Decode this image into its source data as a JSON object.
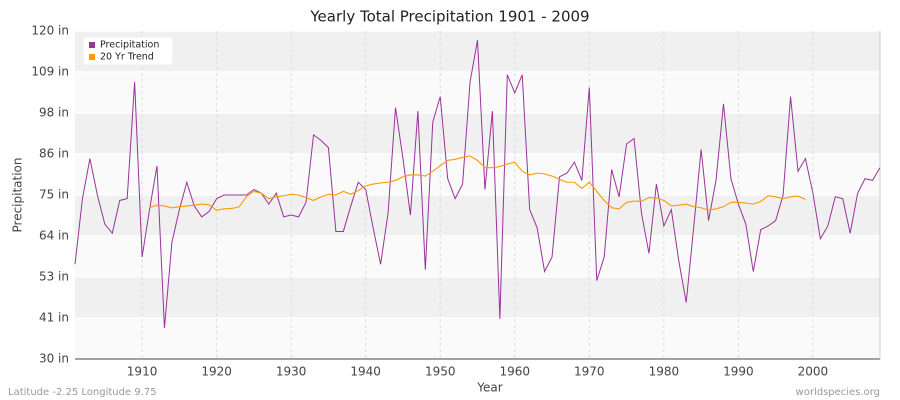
{
  "chart_data": {
    "type": "line",
    "title": "Yearly Total Precipitation 1901 - 2009",
    "x_label": "Year",
    "y_label": "Precipitation",
    "footer_left": "Latitude -2.25 Longitude 9.75",
    "footer_right": "worldspecies.org",
    "x": [
      1901,
      1902,
      1903,
      1904,
      1905,
      1906,
      1907,
      1908,
      1909,
      1910,
      1911,
      1912,
      1913,
      1914,
      1915,
      1916,
      1917,
      1918,
      1919,
      1920,
      1921,
      1922,
      1923,
      1924,
      1925,
      1926,
      1927,
      1928,
      1929,
      1930,
      1931,
      1932,
      1933,
      1934,
      1935,
      1936,
      1937,
      1938,
      1939,
      1940,
      1941,
      1942,
      1943,
      1944,
      1945,
      1946,
      1947,
      1948,
      1949,
      1950,
      1951,
      1952,
      1953,
      1954,
      1955,
      1956,
      1957,
      1958,
      1959,
      1960,
      1961,
      1962,
      1963,
      1964,
      1965,
      1966,
      1967,
      1968,
      1969,
      1970,
      1971,
      1972,
      1973,
      1974,
      1975,
      1976,
      1977,
      1978,
      1979,
      1980,
      1981,
      1982,
      1983,
      1984,
      1985,
      1986,
      1987,
      1988,
      1989,
      1990,
      1991,
      1992,
      1993,
      1994,
      1995,
      1996,
      1997,
      1998,
      1999,
      2000,
      2001,
      2002,
      2003,
      2004,
      2005,
      2006,
      2007,
      2008,
      2009
    ],
    "series": [
      {
        "name": "Precipitation",
        "color": "#993399",
        "values": [
          56,
          74,
          85,
          75,
          67,
          64.5,
          73.5,
          74,
          106,
          58,
          71,
          83,
          38.5,
          62,
          71,
          78.5,
          72,
          69,
          70.5,
          74,
          75,
          75,
          75,
          75,
          76.5,
          75.5,
          72.5,
          75.5,
          69,
          69.5,
          69,
          73,
          91.5,
          90,
          88,
          65,
          65,
          72,
          78.5,
          76.5,
          66,
          56,
          70,
          99,
          85,
          69.5,
          98,
          54.5,
          95,
          102,
          79.5,
          74,
          78,
          106,
          117.5,
          76.5,
          98,
          41,
          108,
          103,
          108,
          71,
          66,
          54,
          58,
          80,
          81,
          84,
          79,
          104.5,
          51.5,
          58,
          82,
          74.5,
          89,
          90.5,
          70,
          59,
          78,
          66.5,
          71,
          57,
          45.5,
          66,
          87.5,
          68,
          79,
          100,
          79.5,
          72.5,
          67,
          54,
          65.5,
          66.5,
          68,
          75,
          102,
          81.5,
          85,
          75.5,
          63,
          66.5,
          74.5,
          74,
          64.5,
          75.5,
          79.5,
          79,
          82.5
        ]
      },
      {
        "name": "20 Yr Trend",
        "color": "#ff9900",
        "values": [
          null,
          null,
          null,
          null,
          null,
          null,
          null,
          null,
          null,
          null,
          71.5,
          72.2,
          72,
          71.5,
          71.8,
          72,
          72.2,
          72.5,
          72.3,
          70.8,
          71.2,
          71.3,
          71.7,
          74.5,
          76,
          75.5,
          74,
          74.5,
          74.8,
          75.2,
          75,
          74.3,
          73.5,
          74.5,
          75.2,
          75,
          76,
          75.2,
          76.2,
          77.5,
          78,
          78.3,
          78.5,
          79,
          80,
          80.5,
          80.5,
          80.2,
          81.5,
          83,
          84.5,
          84.8,
          85.3,
          85.7,
          84.5,
          82.5,
          82.5,
          82.8,
          83.5,
          84,
          81.5,
          80.5,
          81,
          80.8,
          80.2,
          79.3,
          78.5,
          78.5,
          76.8,
          78.5,
          76,
          73.5,
          71.5,
          71.2,
          73,
          73.3,
          73.3,
          74.3,
          74.2,
          73.5,
          72,
          72.2,
          72.5,
          71.8,
          71.5,
          70.8,
          71.2,
          71.8,
          73,
          73,
          72.8,
          72.5,
          73.2,
          74.8,
          74.5,
          74,
          74.5,
          74.7,
          73.8,
          null,
          null,
          null,
          null,
          null,
          null,
          null,
          null,
          null,
          null
        ]
      }
    ],
    "xlim": [
      1901,
      2009
    ],
    "xticks": [
      1910,
      1920,
      1930,
      1940,
      1950,
      1960,
      1970,
      1980,
      1990,
      2000
    ],
    "ylim": [
      30,
      120
    ],
    "yticks": [
      {
        "value": 30,
        "label": "30 in"
      },
      {
        "value": 41.25,
        "label": "41 in"
      },
      {
        "value": 52.5,
        "label": "53 in"
      },
      {
        "value": 63.75,
        "label": "64 in"
      },
      {
        "value": 75,
        "label": "75 in"
      },
      {
        "value": 86.25,
        "label": "86 in"
      },
      {
        "value": 97.5,
        "label": "98 in"
      },
      {
        "value": 108.75,
        "label": "109 in"
      },
      {
        "value": 120,
        "label": "120 in"
      }
    ],
    "grid": true,
    "legend": "top-left"
  }
}
